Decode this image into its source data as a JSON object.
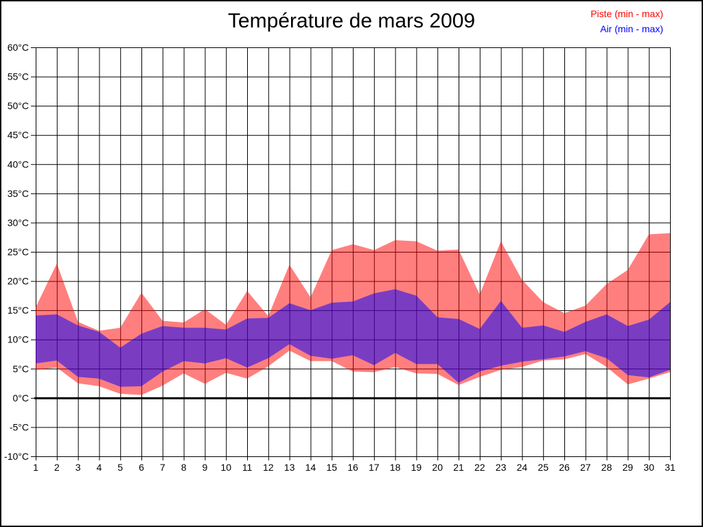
{
  "title": "Température de mars 2009",
  "legend": {
    "piste": "Piste (min - max)",
    "air": "Air (min - max)"
  },
  "chart_data": {
    "type": "area",
    "subtype": "min-max range bands",
    "title": "Température de mars 2009",
    "xlabel": "",
    "ylabel": "",
    "x_unit": "day of month",
    "y_unit": "°C",
    "xlim": [
      1,
      31
    ],
    "ylim": [
      -10,
      60
    ],
    "y_tick_step": 5,
    "grid": "on",
    "legend_position": "top-right outside plot",
    "zero_line": {
      "value": 0,
      "style": "bold black"
    },
    "categories": [
      1,
      2,
      3,
      4,
      5,
      6,
      7,
      8,
      9,
      10,
      11,
      12,
      13,
      14,
      15,
      16,
      17,
      18,
      19,
      20,
      21,
      22,
      23,
      24,
      25,
      26,
      27,
      28,
      29,
      30,
      31
    ],
    "series": [
      {
        "name": "Piste (min - max)",
        "color": "#ff0000",
        "fill": "rgba(255,0,0,0.5)",
        "max": [
          15.5,
          23,
          13,
          11.5,
          12,
          18,
          13.2,
          12.9,
          15.2,
          12.5,
          18.3,
          14,
          22.8,
          17.2,
          25.3,
          26.3,
          25.3,
          27,
          26.8,
          25.2,
          25.4,
          17.7,
          26.8,
          20.2,
          16.4,
          14.5,
          15.8,
          19.5,
          21.9,
          28,
          28.2
        ],
        "min": [
          4.8,
          5.2,
          2.5,
          2,
          0.7,
          0.5,
          2.1,
          4.2,
          2.4,
          4.3,
          3.3,
          5.4,
          8.1,
          6.3,
          6.3,
          4.5,
          4.4,
          5.3,
          4.2,
          4.1,
          2.2,
          3.6,
          4.8,
          5.3,
          6.4,
          6.6,
          7.5,
          5.3,
          2.3,
          3.3,
          4.4
        ]
      },
      {
        "name": "Air (min - max)",
        "color": "#0000ff",
        "fill": "rgba(0,0,255,0.52)",
        "max": [
          14.1,
          14.3,
          12.4,
          11.3,
          8.6,
          11,
          12.3,
          12,
          12,
          11.7,
          13.6,
          13.7,
          16.2,
          15,
          16.3,
          16.5,
          17.9,
          18.6,
          17.5,
          13.8,
          13.5,
          11.8,
          16.6,
          12,
          12.4,
          11.3,
          13,
          14.3,
          12.3,
          13.4,
          16.4
        ],
        "min": [
          5.9,
          6.4,
          3.6,
          3.3,
          1.9,
          2,
          4.5,
          6.3,
          5.9,
          6.8,
          5.2,
          6.8,
          9.2,
          7.2,
          6.7,
          7.3,
          5.6,
          7.7,
          5.8,
          5.8,
          2.6,
          4.5,
          5.5,
          6.2,
          6.6,
          7.1,
          8,
          6.8,
          3.9,
          3.5,
          4.8
        ]
      }
    ]
  }
}
